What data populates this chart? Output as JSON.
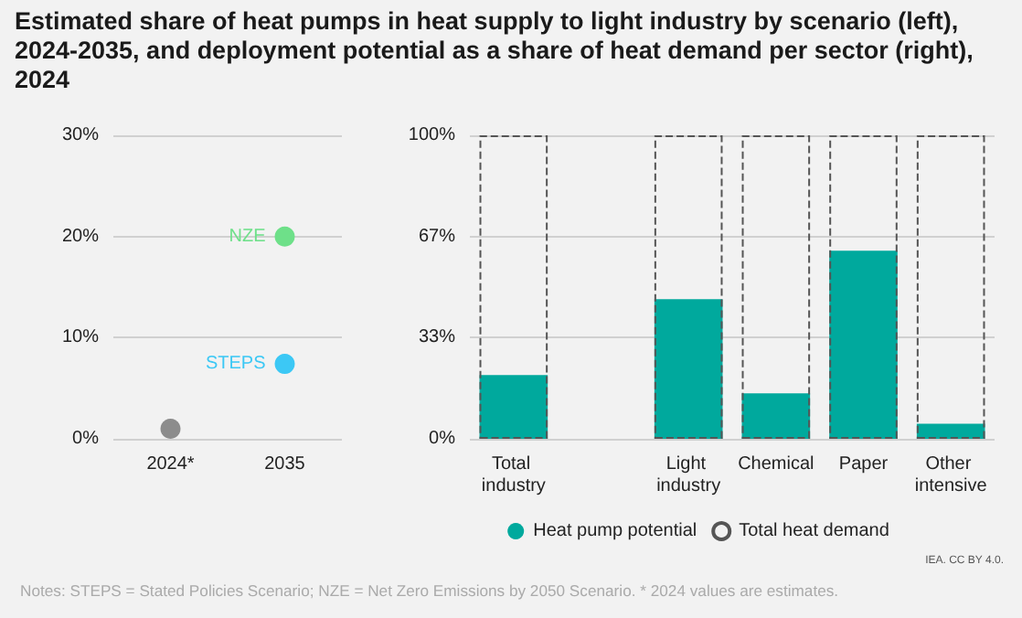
{
  "chart_data": [
    {
      "type": "scatter",
      "title": "Estimated share of heat pumps in heat supply to light industry by scenario (left), 2024-2035, and deployment potential as a share of heat demand per sector (right), 2024",
      "categories": [
        "2024*",
        "2035"
      ],
      "series": [
        {
          "color": "#8c8c8c",
          "values": [
            1,
            null
          ]
        },
        {
          "name": "NZE",
          "color": "#6ee089",
          "values": [
            null,
            20
          ]
        },
        {
          "name": "STEPS",
          "color": "#3cc8f5",
          "values": [
            null,
            7.4
          ]
        }
      ],
      "ylim": [
        0,
        30
      ],
      "yticks": [
        {
          "value": 0,
          "label": "0%"
        },
        {
          "value": 10,
          "label": "10%"
        },
        {
          "value": 20,
          "label": "20%"
        },
        {
          "value": 30,
          "label": "30%"
        }
      ],
      "grid": "y",
      "marker": "circle"
    },
    {
      "type": "bar",
      "categories": [
        "Total industry",
        null,
        "Light industry",
        "Chemical",
        "Paper",
        "Other intensive"
      ],
      "series": [
        {
          "name": "Heat pump potential",
          "color": "#00a99d",
          "values": [
            21,
            null,
            46,
            15,
            62,
            5
          ]
        },
        {
          "name": "Total heat demand",
          "color": "#555555",
          "line_style": "dashed",
          "values": [
            100,
            null,
            100,
            100,
            100,
            100
          ]
        }
      ],
      "ylim": [
        0,
        100
      ],
      "yticks": [
        {
          "value": 0,
          "label": "0%"
        },
        {
          "value": 33.3,
          "label": "33%"
        },
        {
          "value": 66.7,
          "label": "67%"
        },
        {
          "value": 100,
          "label": "100%"
        }
      ],
      "grid": "y",
      "legend": "bottom",
      "annotations": [
        "IEA. CC BY 4.0.",
        "Notes: STEPS = Stated Policies Scenario; NZE = Net Zero Emissions by 2050 Scenario. * 2024 values are estimates."
      ]
    }
  ]
}
